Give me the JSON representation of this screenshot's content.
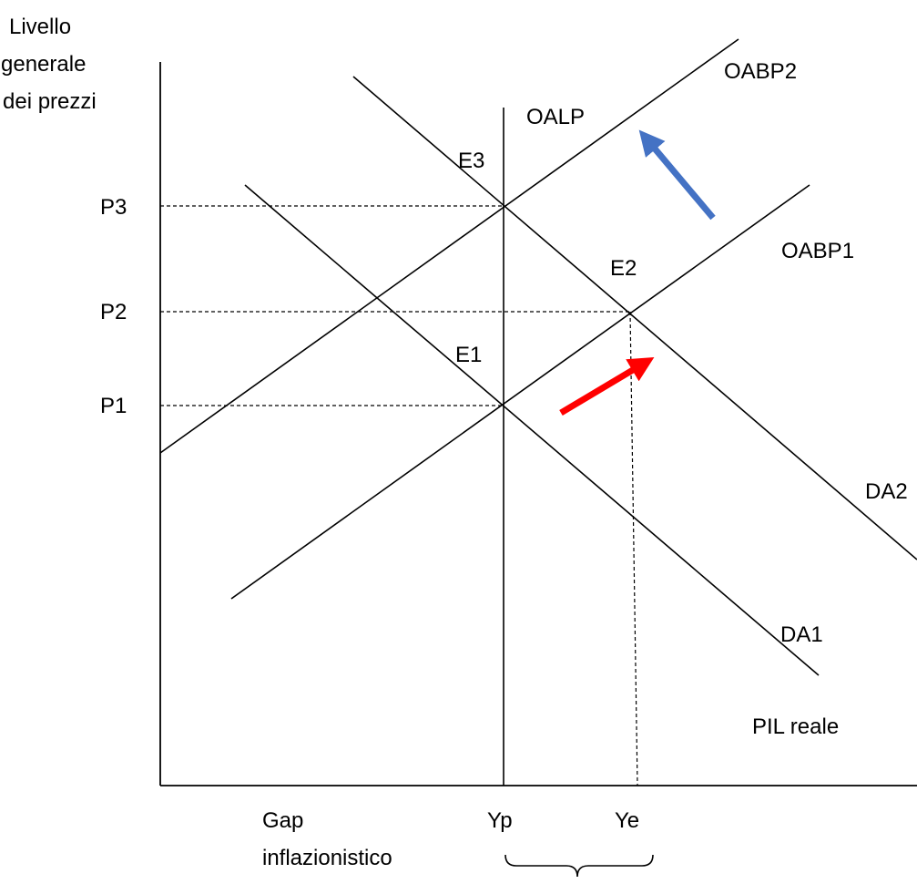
{
  "axes": {
    "y_label_lines": [
      "Livello",
      "generale",
      "dei prezzi"
    ],
    "x_label": "PIL reale"
  },
  "price_levels": {
    "p1": "P1",
    "p2": "P2",
    "p3": "P3"
  },
  "output_levels": {
    "yp": "Yp",
    "ye": "Ye"
  },
  "curves": {
    "oalp": "OALP",
    "oabp1": "OABP1",
    "oabp2": "OABP2",
    "da1": "DA1",
    "da2": "DA2"
  },
  "equilibria": {
    "e1": "E1",
    "e2": "E2",
    "e3": "E3"
  },
  "gap": {
    "label_lines": [
      "Gap",
      "inflazionistico"
    ]
  },
  "colors": {
    "demand_shift_arrow": "#ff0000",
    "supply_shift_arrow": "#4472c4",
    "lines": "#000000"
  }
}
